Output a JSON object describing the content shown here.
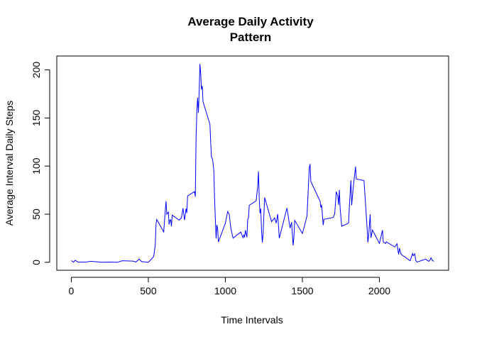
{
  "chart_data": {
    "type": "line",
    "title": [
      "Average Daily Activity",
      "Pattern"
    ],
    "x_label": "Time Intervals",
    "y_label": "Average Interval Daily Steps",
    "color": "#0000ff",
    "x": [
      0,
      15,
      25,
      45,
      100,
      125,
      200,
      245,
      300,
      330,
      400,
      420,
      440,
      455,
      500,
      520,
      535,
      545,
      550,
      555,
      600,
      610,
      615,
      620,
      630,
      635,
      640,
      645,
      650,
      655,
      700,
      715,
      725,
      735,
      745,
      750,
      755,
      800,
      805,
      810,
      815,
      820,
      825,
      830,
      835,
      840,
      845,
      850,
      855,
      900,
      905,
      910,
      915,
      920,
      925,
      930,
      935,
      940,
      945,
      950,
      955,
      1000,
      1015,
      1025,
      1035,
      1045,
      1050,
      1100,
      1115,
      1120,
      1125,
      1130,
      1140,
      1145,
      1150,
      1155,
      1200,
      1210,
      1215,
      1220,
      1225,
      1230,
      1235,
      1240,
      1245,
      1255,
      1300,
      1320,
      1330,
      1340,
      1350,
      1400,
      1420,
      1430,
      1440,
      1445,
      1450,
      1500,
      1510,
      1530,
      1545,
      1550,
      1555,
      1615,
      1620,
      1625,
      1635,
      1640,
      1700,
      1710,
      1720,
      1730,
      1735,
      1740,
      1745,
      1755,
      1800,
      1805,
      1815,
      1820,
      1830,
      1845,
      1850,
      1900,
      1920,
      1925,
      1930,
      1940,
      1945,
      1955,
      2000,
      2020,
      2025,
      2040,
      2045,
      2100,
      2115,
      2120,
      2125,
      2130,
      2140,
      2145,
      2200,
      2215,
      2220,
      2230,
      2235,
      2245,
      2300,
      2320,
      2330,
      2335,
      2345,
      2355
    ],
    "values": [
      1.7,
      0.2,
      2.1,
      0.1,
      0.3,
      1.1,
      0,
      0.2,
      0,
      1.6,
      1.2,
      0.3,
      3.5,
      0.8,
      0,
      3.3,
      6.1,
      18.3,
      39.5,
      44.5,
      31.5,
      53.8,
      63.5,
      49.9,
      52.2,
      39.3,
      44.0,
      44.2,
      37.4,
      49.0,
      43.8,
      46.2,
      56.3,
      44.0,
      55.8,
      51.2,
      69.0,
      73.4,
      68.2,
      129.4,
      157.5,
      171.2,
      155.4,
      177.3,
      206.2,
      195.9,
      179.6,
      183.4,
      167.0,
      143.5,
      124.0,
      109.1,
      108.1,
      103.7,
      96.0,
      66.2,
      45.2,
      24.8,
      38.8,
      35.0,
      21.1,
      40.6,
      52.7,
      50.0,
      36.0,
      28.4,
      25.1,
      31.4,
      25.5,
      28.3,
      26.5,
      33.3,
      26.0,
      44.6,
      46.0,
      59.2,
      63.9,
      78.9,
      94.5,
      66.1,
      51.0,
      55.7,
      32.3,
      20.5,
      29.7,
      67.3,
      42.3,
      46.2,
      40.7,
      50.1,
      25.0,
      56.4,
      35.5,
      41.8,
      17.5,
      26.1,
      43.6,
      30.0,
      35.5,
      48.1,
      98.7,
      102.1,
      83.9,
      63.5,
      56.9,
      59.8,
      38.6,
      44.7,
      46.6,
      50.5,
      73.4,
      68.9,
      59.7,
      75.1,
      56.5,
      37.5,
      40.7,
      58.0,
      85.3,
      59.3,
      77.8,
      99.5,
      86.6,
      84.9,
      36.1,
      20.7,
      27.4,
      49.9,
      25.5,
      33.5,
      19.6,
      33.4,
      21.2,
      19.5,
      21.3,
      15.9,
      19.2,
      12.5,
      8.0,
      14.7,
      8.7,
      7.8,
      1.6,
      9.1,
      6.9,
      8.8,
      2.2,
      0.2,
      3.3,
      1.0,
      2.6,
      4.7,
      1.6,
      1.1
    ],
    "xlim": [
      -94.2,
      2449.2
    ],
    "ylim": [
      -8.25,
      214.4
    ],
    "xticks": [
      0,
      500,
      1000,
      1500,
      2000
    ],
    "yticks": [
      0,
      50,
      100,
      150,
      200
    ]
  }
}
